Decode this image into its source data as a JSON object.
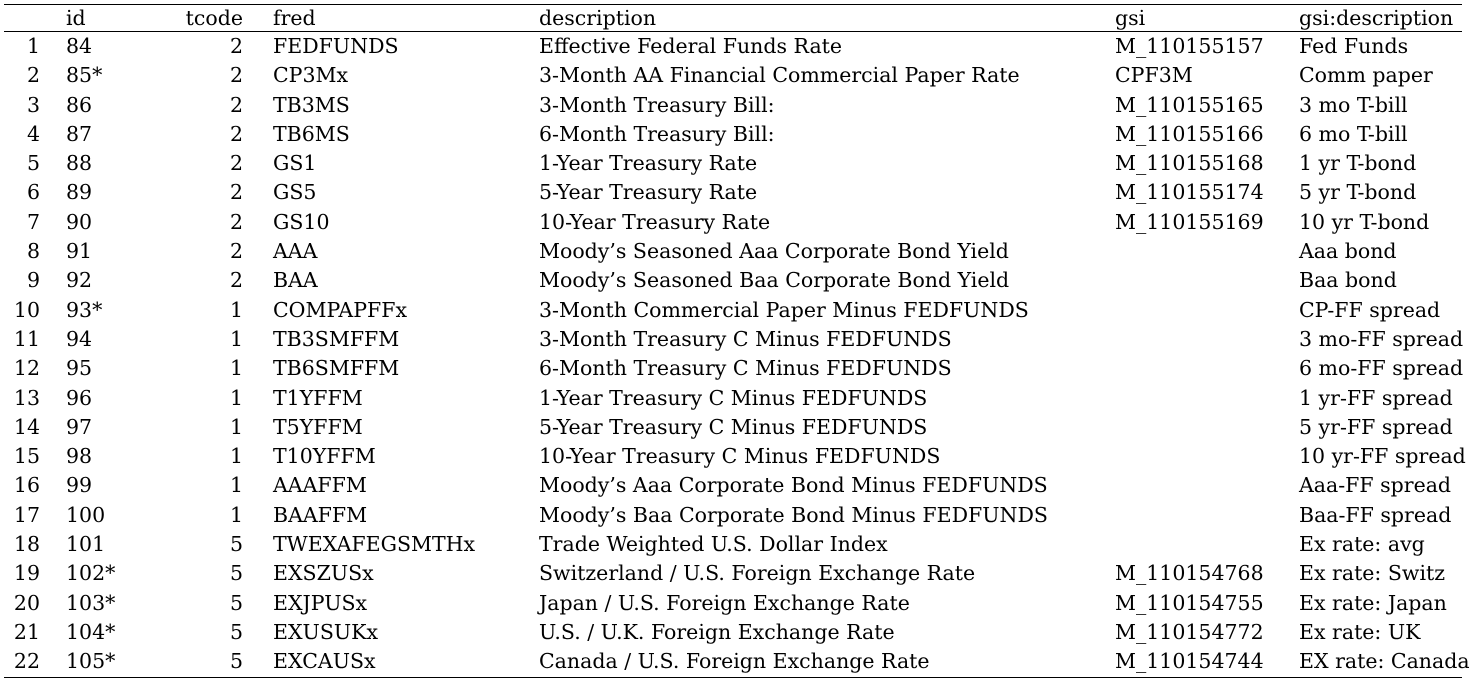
{
  "table": {
    "headers": [
      "",
      "id",
      "tcode",
      "fred",
      "description",
      "gsi",
      "gsi:description"
    ],
    "rows": [
      [
        "1",
        "84",
        "2",
        "FEDFUNDS",
        "Effective Federal Funds Rate",
        "M_110155157",
        "Fed Funds"
      ],
      [
        "2",
        "85*",
        "2",
        "CP3Mx",
        "3-Month AA Financial Commercial Paper Rate",
        "CPF3M",
        "Comm paper"
      ],
      [
        "3",
        "86",
        "2",
        "TB3MS",
        "3-Month Treasury Bill:",
        "M_110155165",
        "3 mo T-bill"
      ],
      [
        "4",
        "87",
        "2",
        "TB6MS",
        "6-Month Treasury Bill:",
        "M_110155166",
        "6 mo T-bill"
      ],
      [
        "5",
        "88",
        "2",
        "GS1",
        "1-Year Treasury Rate",
        "M_110155168",
        "1 yr T-bond"
      ],
      [
        "6",
        "89",
        "2",
        "GS5",
        "5-Year Treasury Rate",
        "M_110155174",
        "5 yr T-bond"
      ],
      [
        "7",
        "90",
        "2",
        "GS10",
        "10-Year Treasury Rate",
        "M_110155169",
        "10 yr T-bond"
      ],
      [
        "8",
        "91",
        "2",
        "AAA",
        "Moody’s Seasoned Aaa Corporate Bond Yield",
        "",
        "Aaa bond"
      ],
      [
        "9",
        "92",
        "2",
        "BAA",
        "Moody’s Seasoned Baa Corporate Bond Yield",
        "",
        "Baa bond"
      ],
      [
        "10",
        "93*",
        "1",
        "COMPAPFFx",
        "3-Month Commercial Paper Minus FEDFUNDS",
        "",
        "CP-FF spread"
      ],
      [
        "11",
        "94",
        "1",
        "TB3SMFFM",
        "3-Month Treasury C Minus FEDFUNDS",
        "",
        "3 mo-FF spread"
      ],
      [
        "12",
        "95",
        "1",
        "TB6SMFFM",
        "6-Month Treasury C Minus FEDFUNDS",
        "",
        "6 mo-FF spread"
      ],
      [
        "13",
        "96",
        "1",
        "T1YFFM",
        "1-Year Treasury C Minus FEDFUNDS",
        "",
        "1 yr-FF spread"
      ],
      [
        "14",
        "97",
        "1",
        "T5YFFM",
        "5-Year Treasury C Minus FEDFUNDS",
        "",
        "5 yr-FF spread"
      ],
      [
        "15",
        "98",
        "1",
        "T10YFFM",
        "10-Year Treasury C Minus FEDFUNDS",
        "",
        "10 yr-FF spread"
      ],
      [
        "16",
        "99",
        "1",
        "AAAFFM",
        "Moody’s Aaa Corporate Bond Minus FEDFUNDS",
        "",
        "Aaa-FF spread"
      ],
      [
        "17",
        "100",
        "1",
        "BAAFFM",
        "Moody’s Baa Corporate Bond Minus FEDFUNDS",
        "",
        "Baa-FF spread"
      ],
      [
        "18",
        "101",
        "5",
        "TWEXAFEGSMTHx",
        "Trade Weighted U.S. Dollar Index",
        "",
        "Ex rate: avg"
      ],
      [
        "19",
        "102*",
        "5",
        "EXSZUSx",
        "Switzerland / U.S. Foreign Exchange Rate",
        "M_110154768",
        "Ex rate: Switz"
      ],
      [
        "20",
        "103*",
        "5",
        "EXJPUSx",
        "Japan / U.S. Foreign Exchange Rate",
        "M_110154755",
        "Ex rate: Japan"
      ],
      [
        "21",
        "104*",
        "5",
        "EXUSUKx",
        "U.S. / U.K. Foreign Exchange Rate",
        "M_110154772",
        "Ex rate: UK"
      ],
      [
        "22",
        "105*",
        "5",
        "EXCAUSx",
        "Canada / U.S. Foreign Exchange Rate",
        "M_110154744",
        "EX rate: Canada"
      ]
    ]
  }
}
